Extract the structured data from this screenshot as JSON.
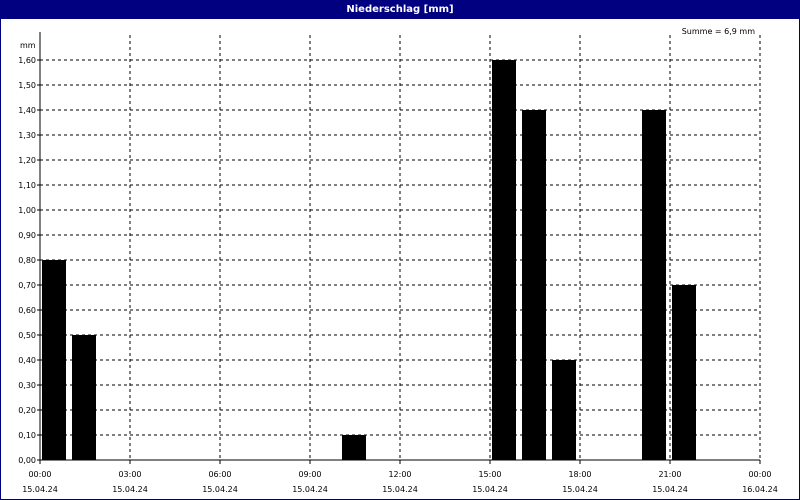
{
  "window": {
    "title": "Niederschlag [mm]"
  },
  "chart_data": {
    "type": "bar",
    "title": "Niederschlag [mm]",
    "ylabel": "mm",
    "annotation": "Summe = 6,9 mm",
    "ylim": [
      0,
      1.7
    ],
    "yticks": [
      "0,00",
      "0,10",
      "0,20",
      "0,30",
      "0,40",
      "0,50",
      "0,60",
      "0,70",
      "0,80",
      "0,90",
      "1,00",
      "1,10",
      "1,20",
      "1,30",
      "1,40",
      "1,50",
      "1,60"
    ],
    "xlim": [
      0,
      24
    ],
    "xticks": [
      {
        "time": "00:00",
        "date": "15.04.24"
      },
      {
        "time": "03:00",
        "date": "15.04.24"
      },
      {
        "time": "06:00",
        "date": "15.04.24"
      },
      {
        "time": "09:00",
        "date": "15.04.24"
      },
      {
        "time": "12:00",
        "date": "15.04.24"
      },
      {
        "time": "15:00",
        "date": "15.04.24"
      },
      {
        "time": "18:00",
        "date": "15.04.24"
      },
      {
        "time": "21:00",
        "date": "15.04.24"
      },
      {
        "time": "00:00",
        "date": "16.04.24"
      }
    ],
    "bars": [
      {
        "hour": 0,
        "value": 0.8
      },
      {
        "hour": 1,
        "value": 0.5
      },
      {
        "hour": 10,
        "value": 0.1
      },
      {
        "hour": 15,
        "value": 1.6
      },
      {
        "hour": 16,
        "value": 1.4
      },
      {
        "hour": 17,
        "value": 0.4
      },
      {
        "hour": 20,
        "value": 1.4
      },
      {
        "hour": 21,
        "value": 0.7
      }
    ],
    "grid": true,
    "bar_color": "#000000"
  }
}
